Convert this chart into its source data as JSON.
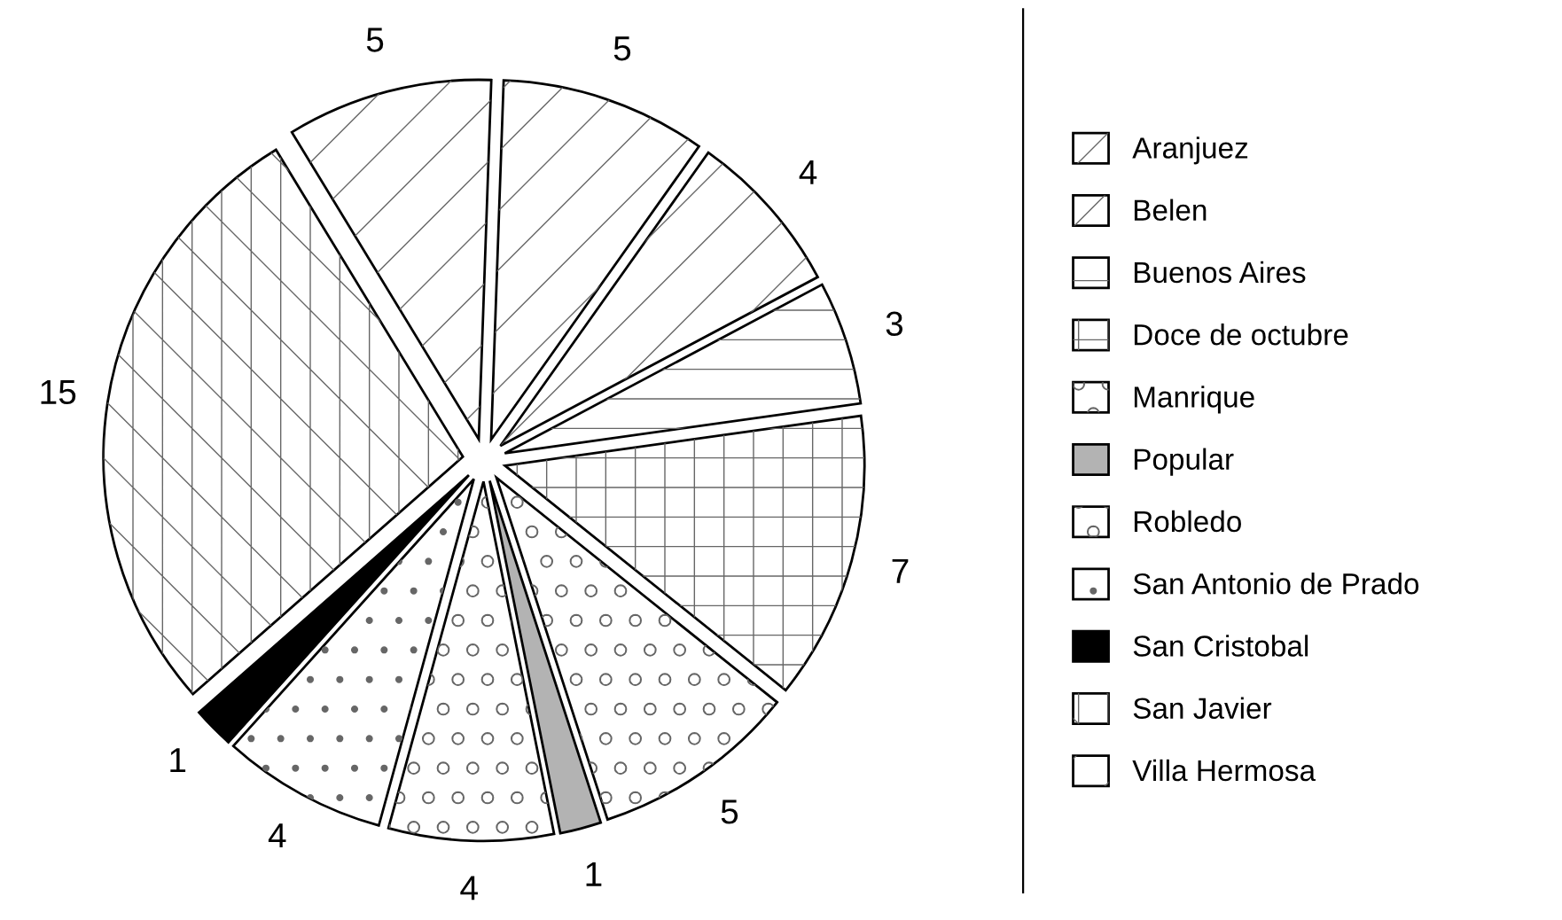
{
  "chart_data": {
    "type": "pie",
    "categories": [
      "Aranjuez",
      "Belen",
      "Buenos Aires",
      "Doce de octubre",
      "Manrique",
      "Popular",
      "Robledo",
      "San Antonio de Prado",
      "San Cristobal",
      "San Javier",
      "Villa Hermosa"
    ],
    "values": [
      5,
      4,
      3,
      7,
      5,
      1,
      4,
      4,
      1,
      15,
      5
    ],
    "colors": [
      "#ffffff",
      "#ffffff",
      "#ffffff",
      "#ffffff",
      "#ffffff",
      "#b3b3b3",
      "#ffffff",
      "#ffffff",
      "#000000",
      "#ffffff",
      "#ffffff"
    ],
    "data_labels": true,
    "legend": "right"
  }
}
